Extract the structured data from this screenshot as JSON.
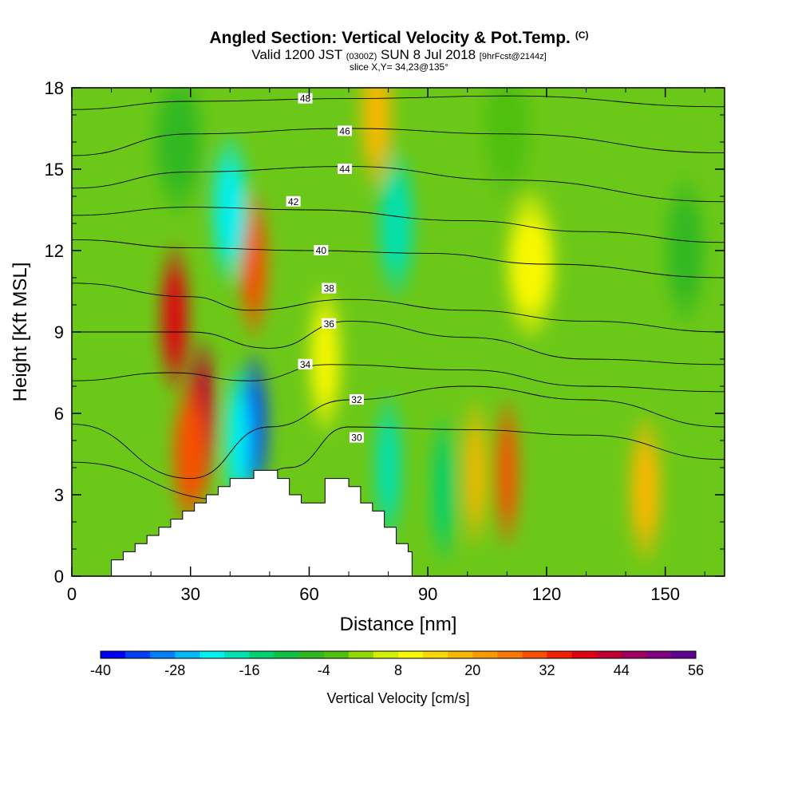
{
  "header": {
    "title": "Angled Section: Vertical Velocity & Pot.Temp.",
    "title_mark": "(C)",
    "valid_a": "Valid 1200 JST",
    "valid_b": "(0300Z)",
    "valid_c": "SUN 8 Jul 2018",
    "valid_d": "[9hrFcst@2144z]",
    "slice": "slice X,Y= 34,23@135°"
  },
  "chart_data": {
    "type": "heatmap",
    "xlabel": "Distance [nm]",
    "ylabel": "Height [Kft MSL]",
    "xlim": [
      0,
      165
    ],
    "ylim": [
      0,
      18
    ],
    "x_ticks": [
      0,
      30,
      60,
      90,
      120,
      150
    ],
    "y_ticks": [
      0,
      3,
      6,
      9,
      12,
      15,
      18
    ],
    "x_tick_labels": [
      "0",
      "30",
      "60",
      "90",
      "120",
      "150"
    ],
    "y_tick_labels": [
      "0",
      "3",
      "6",
      "9",
      "12",
      "15",
      "18"
    ],
    "colorbar": {
      "label": "Vertical Velocity [cm/s]",
      "tick_labels": [
        "-40",
        "-28",
        "-16",
        "-4",
        "8",
        "20",
        "32",
        "44",
        "56"
      ],
      "min": -40,
      "max": 56,
      "step": 4,
      "colors": [
        "#0000f0",
        "#0040f8",
        "#0080f8",
        "#00b8f8",
        "#00f0f0",
        "#00e0b0",
        "#00d070",
        "#10c040",
        "#30b820",
        "#50c010",
        "#90d800",
        "#d0f000",
        "#f8f800",
        "#f8d800",
        "#f8b800",
        "#f89800",
        "#f87800",
        "#f85000",
        "#f02000",
        "#e00010",
        "#c00030",
        "#a00060",
        "#800080",
        "#600090"
      ]
    },
    "terrain_profile": [
      [
        10,
        0.7
      ],
      [
        20,
        1.7
      ],
      [
        30,
        2.7
      ],
      [
        40,
        3.5
      ],
      [
        48,
        3.9
      ],
      [
        52,
        3.5
      ],
      [
        56,
        2.8
      ],
      [
        60,
        2.3
      ],
      [
        64,
        3.6
      ],
      [
        69,
        3.6
      ],
      [
        74,
        2.6
      ],
      [
        80,
        1.6
      ],
      [
        86,
        0.6
      ]
    ],
    "vertical_velocity_cells": [
      {
        "x": 26,
        "y": 9.5,
        "w": 5,
        "value": 36
      },
      {
        "x": 33,
        "y": 6.0,
        "w": 5,
        "value": 40
      },
      {
        "x": 30,
        "y": 4.5,
        "w": 7,
        "value": 28
      },
      {
        "x": 46,
        "y": 11.5,
        "w": 5,
        "value": 28
      },
      {
        "x": 40,
        "y": 13.5,
        "w": 7,
        "value": -24
      },
      {
        "x": 46,
        "y": 5.5,
        "w": 5,
        "value": -36
      },
      {
        "x": 42,
        "y": 5.0,
        "w": 5,
        "value": -24
      },
      {
        "x": 82,
        "y": 13.0,
        "w": 7,
        "value": -20
      },
      {
        "x": 80,
        "y": 4.0,
        "w": 5,
        "value": -20
      },
      {
        "x": 94,
        "y": 3.2,
        "w": 4,
        "value": -16
      },
      {
        "x": 110,
        "y": 3.8,
        "w": 4,
        "value": 28
      },
      {
        "x": 102,
        "y": 3.8,
        "w": 4,
        "value": 16
      },
      {
        "x": 145,
        "y": 3.2,
        "w": 6,
        "value": 16
      },
      {
        "x": 77,
        "y": 17.0,
        "w": 6,
        "value": 16
      },
      {
        "x": 116,
        "y": 11.5,
        "w": 10,
        "value": 8
      },
      {
        "x": 64,
        "y": 8.0,
        "w": 6,
        "value": 8
      },
      {
        "x": 27,
        "y": 16.0,
        "w": 10,
        "value": -8
      },
      {
        "x": 155,
        "y": 12.0,
        "w": 8,
        "value": -8
      },
      {
        "x": 110,
        "y": 16.5,
        "w": 10,
        "value": -4
      }
    ],
    "theta_contours": [
      {
        "label": "30",
        "levels": [
          [
            0,
            4.2
          ],
          [
            40,
            2.8
          ],
          [
            55,
            4.0
          ],
          [
            70,
            5.5
          ],
          [
            100,
            5.4
          ],
          [
            130,
            5.2
          ],
          [
            165,
            4.3
          ]
        ],
        "label_at": [
          72,
          5.1
        ]
      },
      {
        "label": "32",
        "levels": [
          [
            0,
            5.6
          ],
          [
            30,
            3.6
          ],
          [
            50,
            5.5
          ],
          [
            70,
            6.5
          ],
          [
            100,
            7.0
          ],
          [
            130,
            6.5
          ],
          [
            165,
            5.5
          ]
        ],
        "label_at": [
          72,
          6.5
        ]
      },
      {
        "label": "34",
        "levels": [
          [
            0,
            7.2
          ],
          [
            25,
            7.5
          ],
          [
            45,
            7.2
          ],
          [
            65,
            7.8
          ],
          [
            100,
            7.6
          ],
          [
            130,
            7.0
          ],
          [
            165,
            6.8
          ]
        ],
        "label_at": [
          59,
          7.8
        ]
      },
      {
        "label": "36",
        "levels": [
          [
            0,
            9.0
          ],
          [
            30,
            9.0
          ],
          [
            50,
            8.4
          ],
          [
            70,
            9.4
          ],
          [
            100,
            8.8
          ],
          [
            130,
            8.0
          ],
          [
            165,
            7.8
          ]
        ],
        "label_at": [
          65,
          9.3
        ]
      },
      {
        "label": "38",
        "levels": [
          [
            0,
            10.8
          ],
          [
            30,
            10.3
          ],
          [
            45,
            9.8
          ],
          [
            70,
            10.2
          ],
          [
            100,
            9.8
          ],
          [
            130,
            9.4
          ],
          [
            165,
            9.0
          ]
        ],
        "label_at": [
          65,
          10.6
        ]
      },
      {
        "label": "40",
        "levels": [
          [
            0,
            12.4
          ],
          [
            30,
            12.1
          ],
          [
            60,
            12.0
          ],
          [
            90,
            11.9
          ],
          [
            120,
            11.5
          ],
          [
            165,
            11.0
          ]
        ],
        "label_at": [
          63,
          12.0
        ]
      },
      {
        "label": "42",
        "levels": [
          [
            0,
            13.3
          ],
          [
            30,
            13.6
          ],
          [
            60,
            13.5
          ],
          [
            100,
            13.1
          ],
          [
            130,
            12.7
          ],
          [
            165,
            12.3
          ]
        ],
        "label_at": [
          56,
          13.8
        ]
      },
      {
        "label": "44",
        "levels": [
          [
            0,
            14.3
          ],
          [
            30,
            14.9
          ],
          [
            70,
            15.1
          ],
          [
            110,
            14.6
          ],
          [
            165,
            13.8
          ]
        ],
        "label_at": [
          69,
          15.0
        ]
      },
      {
        "label": "46",
        "levels": [
          [
            0,
            15.5
          ],
          [
            30,
            16.3
          ],
          [
            70,
            16.5
          ],
          [
            110,
            16.3
          ],
          [
            165,
            15.6
          ]
        ],
        "label_at": [
          69,
          16.4
        ]
      },
      {
        "label": "48",
        "levels": [
          [
            0,
            17.2
          ],
          [
            30,
            17.5
          ],
          [
            70,
            17.6
          ],
          [
            110,
            17.7
          ],
          [
            165,
            17.3
          ]
        ],
        "label_at": [
          59,
          17.6
        ]
      }
    ]
  }
}
